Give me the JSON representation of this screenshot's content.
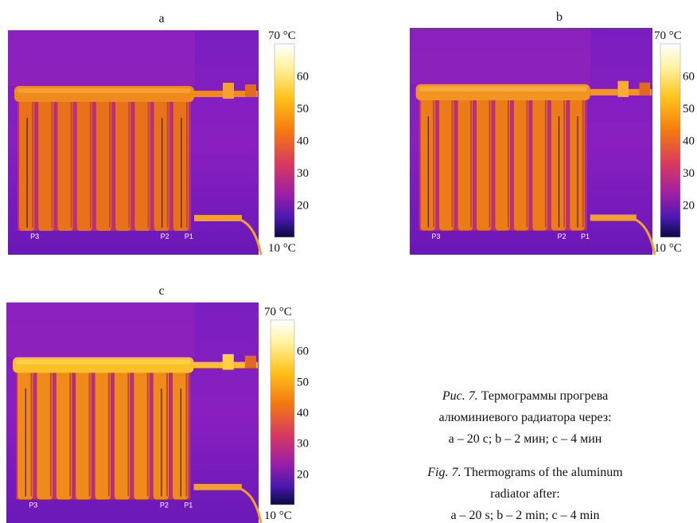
{
  "panels": [
    {
      "label": "a",
      "points": [
        "P3",
        "P2",
        "P1"
      ]
    },
    {
      "label": "b",
      "points": [
        "P3",
        "P2",
        "P1"
      ]
    },
    {
      "label": "c",
      "points": [
        "P3",
        "P2",
        "P1"
      ]
    }
  ],
  "colorbar": {
    "ticks": [
      "70 °C",
      "60",
      "50",
      "40",
      "30",
      "20",
      "10 °C"
    ]
  },
  "caption": {
    "ru": {
      "label": "Рис. 7.",
      "lines": [
        "Термограммы прогрева",
        "алюминиевого радиатора через:",
        "a – 20 с; b – 2 мин; c – 4 мин"
      ]
    },
    "en": {
      "label": "Fig. 7.",
      "lines": [
        "Thermograms of the aluminum",
        "radiator after:",
        "a – 20 s; b – 2 min; c – 4 min"
      ]
    }
  }
}
